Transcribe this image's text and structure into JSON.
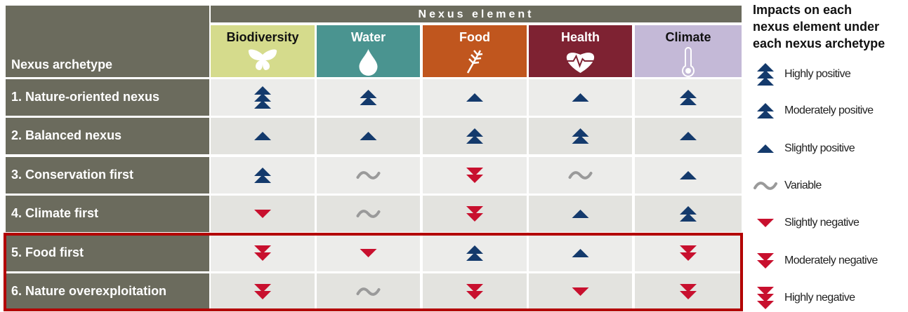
{
  "header": {
    "group": "Nexus element",
    "row_header": "Nexus archetype",
    "columns": [
      "Biodiversity",
      "Water",
      "Food",
      "Health",
      "Climate"
    ]
  },
  "table": {
    "rows": [
      {
        "label": "1. Nature-oriented nexus",
        "cells": [
          "Highly positive",
          "Moderately positive",
          "Slightly positive",
          "Slightly positive",
          "Moderately positive"
        ]
      },
      {
        "label": "2. Balanced nexus",
        "cells": [
          "Slightly positive",
          "Slightly positive",
          "Moderately positive",
          "Moderately positive",
          "Slightly positive"
        ]
      },
      {
        "label": "3. Conservation first",
        "cells": [
          "Moderately positive",
          "Variable",
          "Moderately negative",
          "Variable",
          "Slightly positive"
        ]
      },
      {
        "label": "4. Climate first",
        "cells": [
          "Slightly negative",
          "Variable",
          "Moderately negative",
          "Slightly positive",
          "Moderately positive"
        ]
      },
      {
        "label": "5. Food first",
        "cells": [
          "Moderately negative",
          "Slightly negative",
          "Moderately positive",
          "Slightly positive",
          "Moderately negative"
        ]
      },
      {
        "label": "6. Nature overexploitation",
        "cells": [
          "Moderately negative",
          "Variable",
          "Moderately negative",
          "Slightly negative",
          "Moderately negative"
        ]
      }
    ]
  },
  "legend": {
    "title": [
      "Impacts on each",
      "nexus element under",
      "each nexus archetype"
    ],
    "items": [
      "Highly positive",
      "Moderately positive",
      "Slightly positive",
      "Variable",
      "Slightly negative",
      "Moderately negative",
      "Highly negative"
    ]
  }
}
